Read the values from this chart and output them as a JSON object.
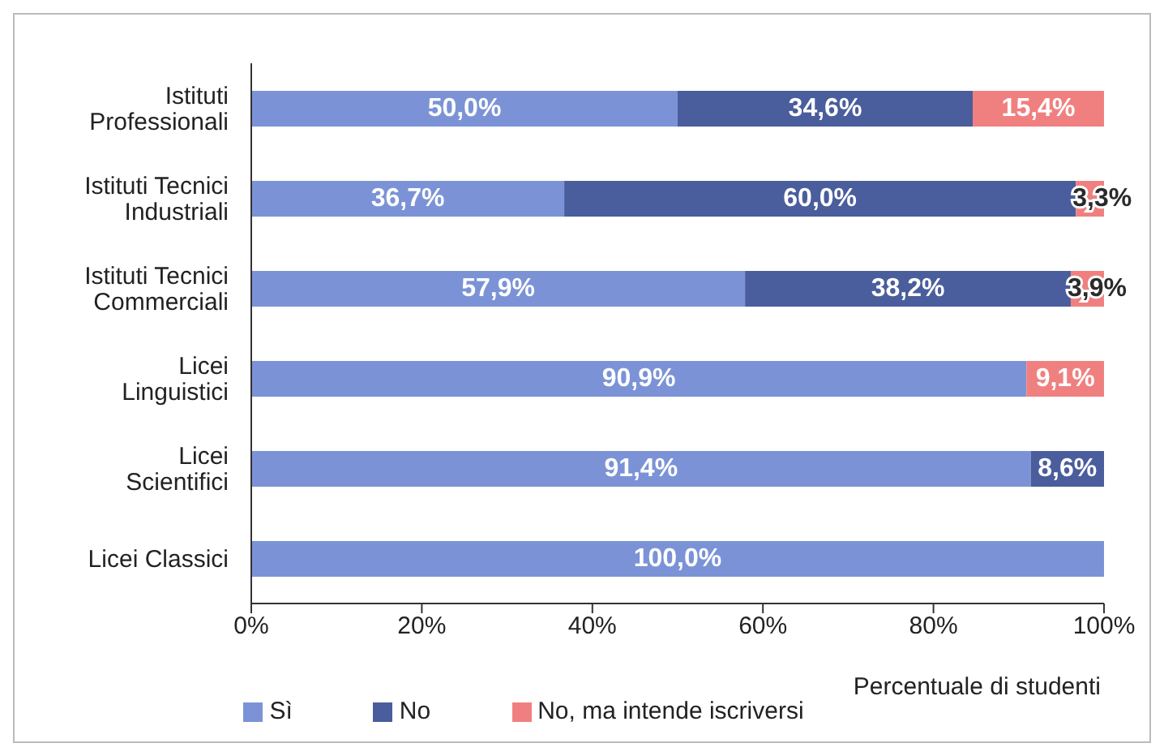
{
  "chart_data": {
    "type": "bar",
    "orientation": "horizontal",
    "stacked": true,
    "categories": [
      "Istituti Professionali",
      "Istituti Tecnici Industriali",
      "Istituti Tecnici Commerciali",
      "Licei Linguistici",
      "Licei Scientifici",
      "Licei Classici"
    ],
    "xlabel": "Percentuale di studenti",
    "xlim": [
      0,
      100
    ],
    "xticks": [
      {
        "value": 0,
        "label": "0%"
      },
      {
        "value": 20,
        "label": "20%"
      },
      {
        "value": 40,
        "label": "40%"
      },
      {
        "value": 60,
        "label": "60%"
      },
      {
        "value": 80,
        "label": "80%"
      },
      {
        "value": 100,
        "label": "100%"
      }
    ],
    "legend": "bottom",
    "grid": false,
    "series": [
      {
        "name": "Sì",
        "color": "#7b93d6",
        "values": [
          50.0,
          36.7,
          57.9,
          90.9,
          91.4,
          100.0
        ],
        "value_labels": [
          "50,0%",
          "36,7%",
          "57,9%",
          "90,9%",
          "91,4%",
          "100,0%"
        ]
      },
      {
        "name": "No",
        "color": "#4a5d9c",
        "values": [
          34.6,
          60.0,
          38.2,
          null,
          8.6,
          null
        ],
        "value_labels": [
          "34,6%",
          "60,0%",
          "38,2%",
          null,
          "8,6%",
          null
        ]
      },
      {
        "name": "No, ma intende iscriversi",
        "color": "#f08080",
        "values": [
          15.4,
          3.3,
          3.9,
          9.1,
          null,
          null
        ],
        "value_labels": [
          "15,4%",
          "3,3%",
          "3,9%",
          "9,1%",
          null,
          null
        ]
      }
    ]
  }
}
